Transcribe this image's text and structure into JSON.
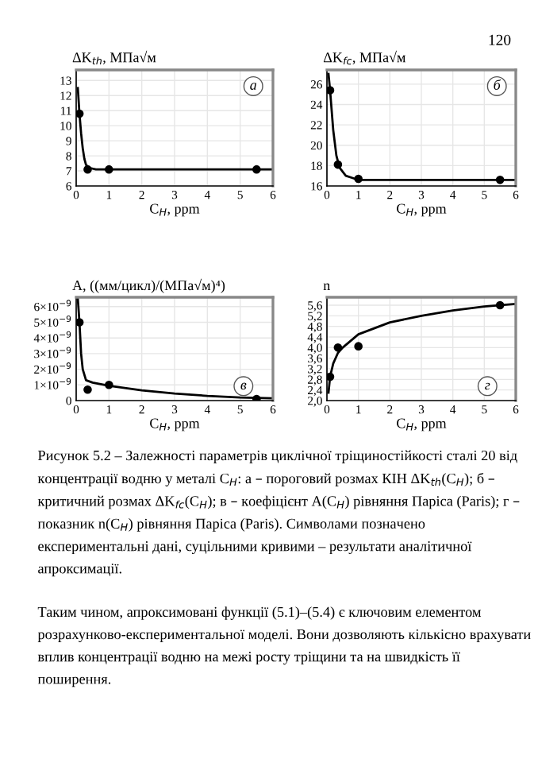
{
  "chart_data": [
    {
      "type": "line",
      "ylabel": "ΔK$_{th}$, МПа√м",
      "xlabel": "C$_{H}$, ppm",
      "annotations": [
        "а"
      ],
      "xlim": [
        0,
        6
      ],
      "xticks": [
        0,
        1,
        2,
        3,
        4,
        5,
        6
      ],
      "ylim": [
        6,
        13.7
      ],
      "yticks": [
        6,
        7,
        8,
        9,
        10,
        11,
        12,
        13
      ],
      "grid": true,
      "series": [
        {
          "type": "line",
          "color": "#000000",
          "x": [
            0.05,
            0.1,
            0.15,
            0.2,
            0.25,
            0.3,
            0.4,
            0.6,
            1,
            6
          ],
          "values": [
            12.5,
            10.8,
            9.5,
            8.5,
            7.8,
            7.4,
            7.2,
            7.1,
            7.1,
            7.1
          ]
        },
        {
          "type": "scatter",
          "marker": "circle",
          "color": "#000000",
          "x": [
            0.1,
            0.35,
            1.0,
            5.5
          ],
          "values": [
            10.8,
            7.1,
            7.1,
            7.1
          ]
        }
      ]
    },
    {
      "type": "line",
      "ylabel": "ΔK$_{fc}$, МПа√м",
      "xlabel": "C$_{H}$, ppm",
      "annotations": [
        "б"
      ],
      "xlim": [
        0,
        6
      ],
      "xticks": [
        0,
        1,
        2,
        3,
        4,
        5,
        6
      ],
      "ylim": [
        16,
        27.4
      ],
      "yticks": [
        16,
        18,
        20,
        22,
        24,
        26
      ],
      "grid": true,
      "series": [
        {
          "type": "line",
          "color": "#000000",
          "x": [
            0.05,
            0.1,
            0.2,
            0.3,
            0.4,
            0.6,
            0.8,
            1,
            6
          ],
          "values": [
            27,
            25.4,
            21.5,
            19,
            17.8,
            17.0,
            16.8,
            16.6,
            16.6
          ]
        },
        {
          "type": "scatter",
          "marker": "circle",
          "color": "#000000",
          "x": [
            0.1,
            0.35,
            1.0,
            5.5
          ],
          "values": [
            25.4,
            18.1,
            16.7,
            16.6
          ]
        }
      ]
    },
    {
      "type": "line",
      "ylabel": "A, ((мм/цикл)/(МПа√м)⁴)",
      "xlabel": "C$_{H}$, ppm",
      "annotations": [
        "в"
      ],
      "xlim": [
        0,
        6
      ],
      "xticks": [
        0,
        1,
        2,
        3,
        4,
        5,
        6
      ],
      "ylim": [
        0,
        6.6e-09
      ],
      "yticks": [
        0,
        {
          "value": 1e-09,
          "label": "1×10$^{−9}$"
        },
        {
          "value": 2e-09,
          "label": "2×10$^{−9}$"
        },
        {
          "value": 3e-09,
          "label": "3×10$^{−9}$"
        },
        {
          "value": 4e-09,
          "label": "4×10$^{−9}$"
        },
        {
          "value": 5e-09,
          "label": "5×10$^{−9}$"
        },
        {
          "value": 6e-09,
          "label": "6×10$^{−9}$"
        }
      ],
      "grid": true,
      "series": [
        {
          "type": "line",
          "color": "#000000",
          "x": [
            0.05,
            0.1,
            0.15,
            0.2,
            0.3,
            0.5,
            1,
            2,
            3,
            4,
            5,
            6
          ],
          "values": [
            6.5e-09,
            5e-09,
            3e-09,
            2e-09,
            1.3e-09,
            1.15e-09,
            9.5e-10,
            6.5e-10,
            4.5e-10,
            3e-10,
            2e-10,
            1.5e-10
          ]
        },
        {
          "type": "scatter",
          "marker": "circle",
          "color": "#000000",
          "x": [
            0.1,
            0.35,
            1.0,
            5.5
          ],
          "values": [
            5e-09,
            7e-10,
            1e-09,
            1e-10
          ]
        }
      ]
    },
    {
      "type": "line",
      "ylabel": "n",
      "xlabel": "C$_{H}$, ppm",
      "annotations": [
        "г"
      ],
      "xlim": [
        0,
        6
      ],
      "xticks": [
        0,
        1,
        2,
        3,
        4,
        5,
        6
      ],
      "ylim": [
        2.0,
        5.9
      ],
      "yticks": [
        {
          "value": 2.0,
          "label": "2,0"
        },
        {
          "value": 2.4,
          "label": "2,4"
        },
        {
          "value": 2.8,
          "label": "2,8"
        },
        {
          "value": 3.2,
          "label": "3,2"
        },
        {
          "value": 3.6,
          "label": "3,6"
        },
        {
          "value": 4.0,
          "label": "4,0"
        },
        {
          "value": 4.4,
          "label": "4,4"
        },
        {
          "value": 4.8,
          "label": "4,8"
        },
        {
          "value": 5.2,
          "label": "5,2"
        },
        {
          "value": 5.6,
          "label": "5,6"
        }
      ],
      "grid": true,
      "series": [
        {
          "type": "line",
          "color": "#000000",
          "x": [
            0.05,
            0.1,
            0.2,
            0.35,
            0.5,
            1,
            2,
            3,
            4,
            5,
            6
          ],
          "values": [
            2.3,
            2.9,
            3.4,
            3.8,
            4.0,
            4.5,
            4.95,
            5.2,
            5.4,
            5.55,
            5.65
          ]
        },
        {
          "type": "scatter",
          "marker": "circle",
          "color": "#000000",
          "x": [
            0.1,
            0.35,
            1.0,
            5.5
          ],
          "values": [
            2.9,
            4.0,
            4.05,
            5.6
          ]
        }
      ]
    },
    {
      "type": "other",
      "annotations": [
        "120",
        "Рисунок 5.2 – Залежності параметрів циклічної тріщиностійкості сталі 20 від концентрації водню у металі C$_{H}$: а – пороговий розмах КІН ΔK$_{th}$(C$_{H}$); б – критичний розмах ΔK$_{fc}$(C$_{H}$); в – коефіцієнт A(C$_{H}$) рівняння Паріса (Paris); г – показник n(C$_{H}$) рівняння Паріса (Paris). Символами позначено експериментальні дані, суцільними кривими – результати аналітичної апроксимації.",
        "Таким чином, апроксимовані функції (5.1)–(5.4) є ключовим елементом розрахунково-експериментальної моделі. Вони дозволяють кількісно врахувати вплив концентрації водню на межі росту тріщини та на швидкість її поширення."
      ]
    }
  ]
}
